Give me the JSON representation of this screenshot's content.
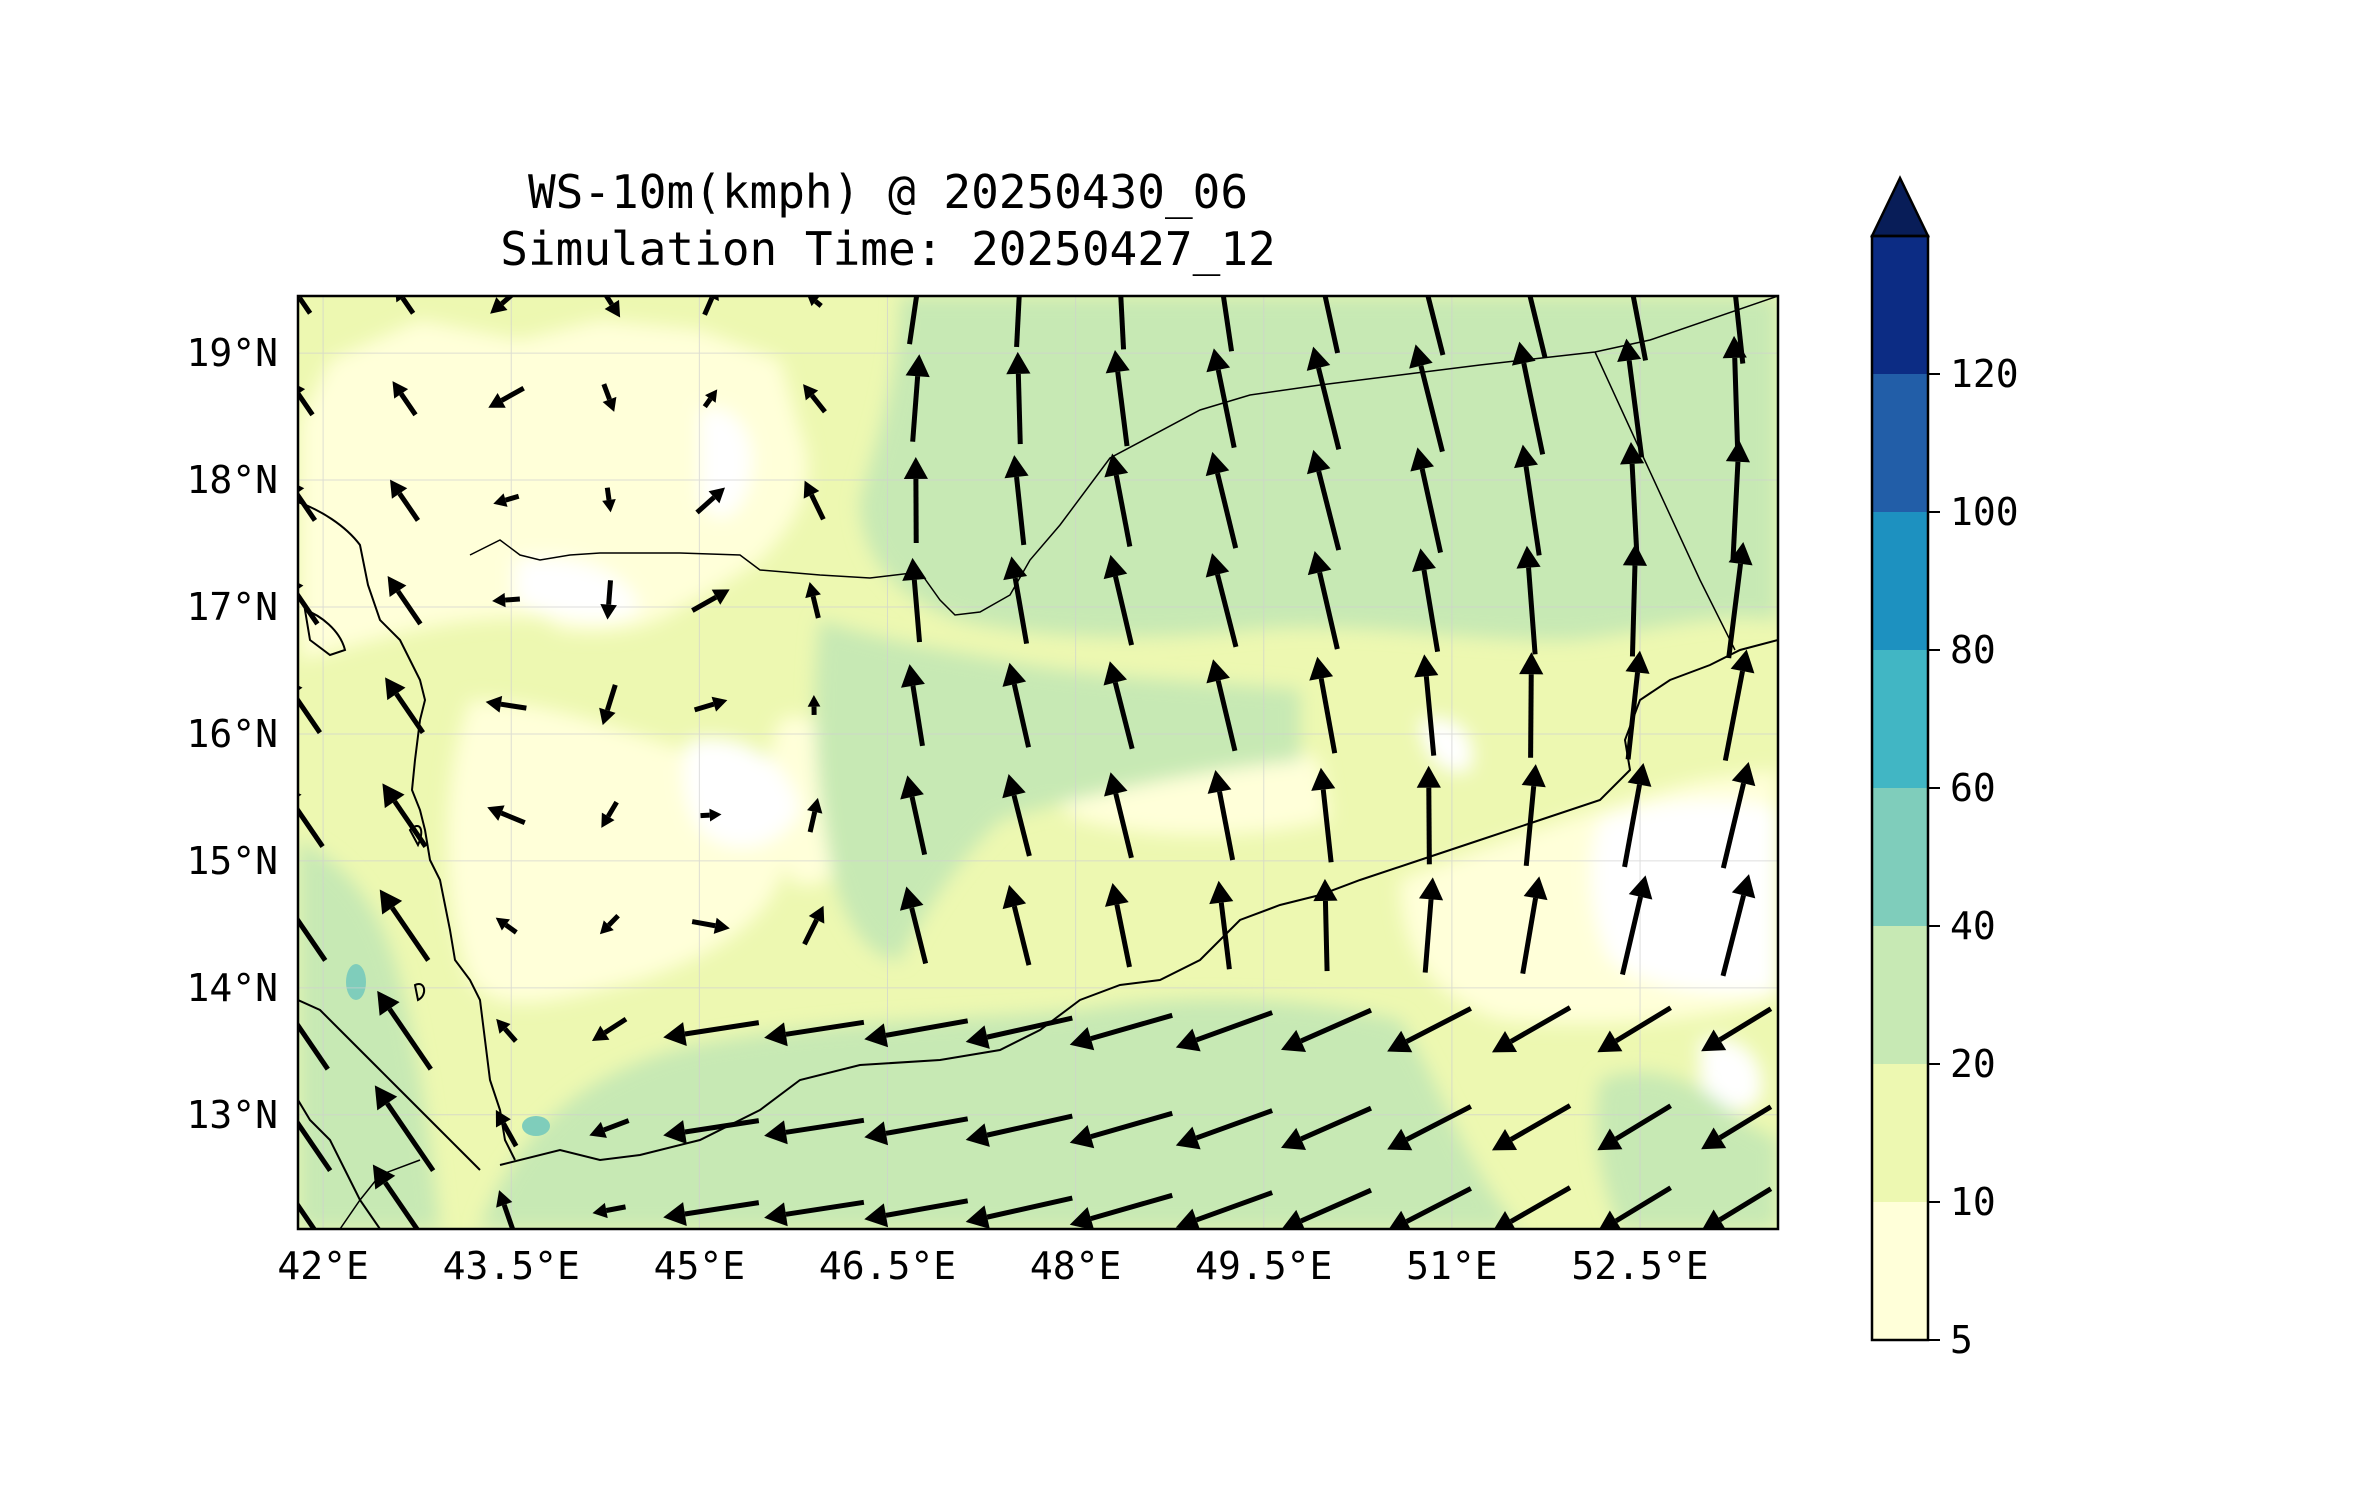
{
  "title": {
    "line1": "WS-10m(kmph) @ 20250430_06",
    "line2": "Simulation Time: 20250427_12"
  },
  "map": {
    "lon_range": [
      41.8,
      53.6
    ],
    "lat_range": [
      12.1,
      19.45
    ],
    "x_ticks": [
      "42°E",
      "43.5°E",
      "45°E",
      "46.5°E",
      "48°E",
      "49.5°E",
      "51°E",
      "52.5°E"
    ],
    "y_ticks": [
      "19°N",
      "18°N",
      "17°N",
      "16°N",
      "15°N",
      "14°N",
      "13°N"
    ],
    "grid": true
  },
  "colorbar": {
    "levels": [
      "5",
      "10",
      "20",
      "40",
      "60",
      "80",
      "100",
      "120"
    ],
    "colors": [
      "#ffffd9",
      "#edf8b1",
      "#c7e9b4",
      "#7fcdbb",
      "#41b6c4",
      "#1d91c0",
      "#225ea8",
      "#0c2c84"
    ],
    "extend_color": "#081d58",
    "extend": "max"
  }
}
